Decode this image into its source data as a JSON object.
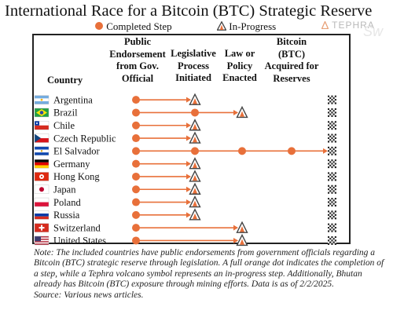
{
  "title": "International Race for a Bitcoin (BTC) Strategic Reserve",
  "brand": "TEPHRA",
  "watermark": "Sw",
  "legend": {
    "completed": "Completed Step",
    "in_progress": "In-Progress"
  },
  "colors": {
    "accent": "#e8703a",
    "volcano": "#444444",
    "frame": "#222222"
  },
  "headers": {
    "country": "Country",
    "step1": [
      "Public",
      "Endorsement",
      "from Gov.",
      "Official"
    ],
    "step2": [
      "Legislative",
      "Process",
      "Initiated"
    ],
    "step3": [
      "Law or",
      "Policy",
      "Enacted"
    ],
    "step4": [
      "Bitcoin",
      "(BTC)",
      "Acquired for",
      "Reserves"
    ]
  },
  "chart_data": {
    "type": "table",
    "steps": [
      "Public Endorsement from Gov. Official",
      "Legislative Process Initiated",
      "Law or Policy Enacted",
      "Bitcoin (BTC) Acquired for Reserves"
    ],
    "rows": [
      {
        "country": "Argentina",
        "completed": 1,
        "in_progress": 2,
        "flag": "argentina"
      },
      {
        "country": "Brazil",
        "completed": 2,
        "in_progress": 3,
        "flag": "brazil"
      },
      {
        "country": "Chile",
        "completed": 1,
        "in_progress": 2,
        "flag": "chile"
      },
      {
        "country": "Czech Republic",
        "completed": 1,
        "in_progress": 2,
        "flag": "czech"
      },
      {
        "country": "El Salvador",
        "completed": 4,
        "in_progress": null,
        "flag": "elsalvador"
      },
      {
        "country": "Germany",
        "completed": 1,
        "in_progress": 2,
        "flag": "germany"
      },
      {
        "country": "Hong Kong",
        "completed": 1,
        "in_progress": 2,
        "flag": "hongkong"
      },
      {
        "country": "Japan",
        "completed": 1,
        "in_progress": 2,
        "flag": "japan"
      },
      {
        "country": "Poland",
        "completed": 1,
        "in_progress": 2,
        "flag": "poland"
      },
      {
        "country": "Russia",
        "completed": 1,
        "in_progress": 2,
        "flag": "russia"
      },
      {
        "country": "Switzerland",
        "completed": 1,
        "in_progress": 3,
        "flag": "switzerland"
      },
      {
        "country": "United States",
        "completed": 1,
        "in_progress": 3,
        "flag": "usa"
      }
    ]
  },
  "note": {
    "body": "Note: The included countries have public endorsements from government officials regarding a Bitcoin (BTC) strategic reserve through legislation. A full orange dot indicates the completion of a step, while a Tephra volcano symbol represents an in-progress step. Additionally, Bhutan already has Bitcoin (BTC) exposure through mining efforts. Data is as of 2/2/2025.",
    "source": "Source: Various news articles."
  }
}
